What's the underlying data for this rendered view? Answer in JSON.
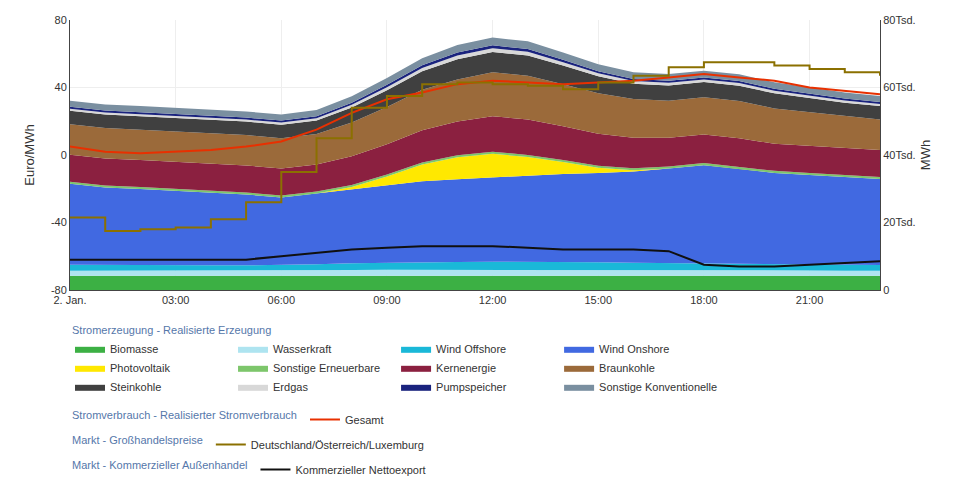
{
  "chart_data": {
    "type": "area",
    "stacked": true,
    "grid": true,
    "legend": "bottom",
    "ylabel": "Euro/MWh",
    "y2label": "MWh",
    "x": [
      0,
      1,
      2,
      3,
      4,
      5,
      6,
      7,
      8,
      9,
      10,
      11,
      12,
      13,
      14,
      15,
      16,
      17,
      18,
      19,
      20,
      21,
      22,
      23
    ],
    "xlim": [
      0,
      23
    ],
    "xticks": [
      {
        "value": 0,
        "label": "2. Jan."
      },
      {
        "value": 3,
        "label": "03:00"
      },
      {
        "value": 6,
        "label": "06:00"
      },
      {
        "value": 9,
        "label": "09:00"
      },
      {
        "value": 12,
        "label": "12:00"
      },
      {
        "value": 15,
        "label": "15:00"
      },
      {
        "value": 18,
        "label": "18:00"
      },
      {
        "value": 21,
        "label": "21:00"
      }
    ],
    "ylim": [
      -80,
      80
    ],
    "yticks": [
      -80,
      -40,
      0,
      40,
      80
    ],
    "y2lim": [
      0,
      80000
    ],
    "y2ticks": [
      0,
      {
        "value": 20000,
        "label": "20Tsd."
      },
      {
        "value": 40000,
        "label": "40Tsd."
      },
      {
        "value": 60000,
        "label": "60Tsd."
      },
      {
        "value": 80000,
        "label": "80Tsd."
      }
    ],
    "series": [
      {
        "name": "Biomasse",
        "section": "Stromerzeugung - Realisierte Erzeugung",
        "type": "area",
        "axis": "y2",
        "color": "#3cb044",
        "values": [
          4200,
          4200,
          4200,
          4200,
          4200,
          4200,
          4200,
          4200,
          4200,
          4200,
          4200,
          4200,
          4200,
          4200,
          4200,
          4200,
          4200,
          4200,
          4200,
          4200,
          4200,
          4200,
          4200,
          4200
        ]
      },
      {
        "name": "Wasserkraft",
        "section": "Stromerzeugung - Realisierte Erzeugung",
        "type": "area",
        "axis": "y2",
        "color": "#aee4f0",
        "values": [
          1500,
          1500,
          1500,
          1500,
          1500,
          1500,
          1500,
          1600,
          1700,
          1800,
          1800,
          1800,
          1800,
          1800,
          1800,
          1700,
          1700,
          1700,
          1800,
          1800,
          1700,
          1600,
          1500,
          1500
        ]
      },
      {
        "name": "Wind Offshore",
        "section": "Stromerzeugung - Realisierte Erzeugung",
        "type": "area",
        "axis": "y2",
        "color": "#1ab8d8",
        "values": [
          1800,
          1700,
          1700,
          1600,
          1600,
          1600,
          1700,
          1800,
          2000,
          2100,
          2200,
          2300,
          2400,
          2400,
          2400,
          2300,
          2200,
          2100,
          2000,
          1900,
          1800,
          1800,
          1700,
          1700
        ]
      },
      {
        "name": "Wind Onshore",
        "section": "Stromerzeugung - Realisierte Erzeugung",
        "type": "area",
        "axis": "y2",
        "color": "#4169e1",
        "values": [
          24000,
          23000,
          22500,
          22000,
          21500,
          21000,
          20000,
          21000,
          22000,
          23000,
          24000,
          24500,
          25000,
          25500,
          26000,
          26500,
          27000,
          28000,
          29000,
          28000,
          27000,
          26500,
          26000,
          25500
        ]
      },
      {
        "name": "Photovoltaik",
        "section": "Stromerzeugung - Realisierte Erzeugung",
        "type": "area",
        "axis": "y2",
        "color": "#ffe800",
        "values": [
          0,
          0,
          0,
          0,
          0,
          0,
          0,
          0,
          600,
          2500,
          5000,
          6500,
          7000,
          5500,
          3500,
          1500,
          400,
          0,
          0,
          0,
          0,
          0,
          0,
          0
        ]
      },
      {
        "name": "Sonstige Erneuerbare",
        "section": "Stromerzeugung - Realisierte Erzeugung",
        "type": "area",
        "axis": "y2",
        "color": "#7dc66b",
        "values": [
          600,
          600,
          600,
          600,
          600,
          600,
          600,
          600,
          600,
          600,
          600,
          600,
          600,
          600,
          600,
          600,
          600,
          600,
          600,
          600,
          600,
          600,
          600,
          600
        ]
      },
      {
        "name": "Kernenergie",
        "section": "Stromerzeugung - Realisierte Erzeugung",
        "type": "area",
        "axis": "y2",
        "color": "#8b2040",
        "values": [
          8000,
          8000,
          8000,
          8000,
          8000,
          8000,
          8000,
          8000,
          8500,
          9000,
          9500,
          10000,
          10500,
          10500,
          10000,
          9500,
          9000,
          8500,
          8500,
          8500,
          8000,
          8000,
          8000,
          8000
        ]
      },
      {
        "name": "Braunkohle",
        "section": "Stromerzeugung - Realisierte Erzeugung",
        "type": "area",
        "axis": "y2",
        "color": "#9b6a3a",
        "values": [
          9000,
          9000,
          9000,
          9000,
          9000,
          9000,
          9000,
          9000,
          10000,
          11000,
          12000,
          12500,
          13000,
          13000,
          12500,
          12000,
          11500,
          11000,
          11000,
          11000,
          10500,
          10000,
          9500,
          9000
        ]
      },
      {
        "name": "Steinkohle",
        "section": "Stromerzeugung - Realisierte Erzeugung",
        "type": "area",
        "axis": "y2",
        "color": "#404040",
        "values": [
          4000,
          4000,
          4000,
          4000,
          4000,
          4000,
          4000,
          4000,
          4500,
          5000,
          5500,
          6000,
          6000,
          6000,
          5500,
          5000,
          4500,
          4500,
          4500,
          4500,
          4500,
          4200,
          4000,
          4000
        ]
      },
      {
        "name": "Erdgas",
        "section": "Stromerzeugung - Realisierte Erzeugung",
        "type": "area",
        "axis": "y2",
        "color": "#d8d8d8",
        "values": [
          600,
          600,
          600,
          600,
          600,
          600,
          600,
          700,
          800,
          900,
          1000,
          1100,
          1100,
          1100,
          1000,
          900,
          800,
          800,
          800,
          800,
          750,
          700,
          650,
          600
        ]
      },
      {
        "name": "Pumpspeicher",
        "section": "Stromerzeugung - Realisierte Erzeugung",
        "type": "area",
        "axis": "y2",
        "color": "#1a237e",
        "values": [
          600,
          600,
          600,
          600,
          600,
          600,
          600,
          600,
          600,
          700,
          800,
          900,
          900,
          800,
          700,
          600,
          600,
          600,
          600,
          600,
          600,
          600,
          600,
          600
        ]
      },
      {
        "name": "Sonstige Konventionelle",
        "section": "Stromerzeugung - Realisierte Erzeugung",
        "type": "area",
        "axis": "y2",
        "color": "#7a8fa0",
        "values": [
          1800,
          1800,
          1800,
          1800,
          1800,
          1800,
          1800,
          1800,
          1900,
          2000,
          2100,
          2200,
          2300,
          2300,
          2200,
          2100,
          2000,
          2000,
          2000,
          2000,
          1900,
          1900,
          1800,
          1800
        ]
      },
      {
        "name": "Gesamt",
        "section": "Stromverbrauch - Realisierter Stromverbrauch",
        "type": "line",
        "color": "#e83000",
        "values": [
          5,
          2,
          1,
          2,
          3,
          5,
          8,
          15,
          25,
          33,
          37,
          42,
          44,
          43,
          42,
          43,
          44,
          46,
          48,
          46,
          44,
          40,
          38,
          36
        ]
      },
      {
        "name": "Deutschland/Österreich/Luxemburg",
        "section": "Markt - Großhandelspreise",
        "type": "step",
        "color": "#8b7000",
        "values": [
          -37,
          -45,
          -44,
          -43,
          -38,
          -28,
          -10,
          10,
          28,
          35,
          42,
          43,
          42,
          41,
          39,
          43,
          47,
          52,
          55,
          55,
          53,
          51,
          49,
          47
        ]
      },
      {
        "name": "Kommerzieller Nettoexport",
        "section": "Markt - Kommerzieller Außenhandel",
        "type": "line",
        "color": "#101010",
        "values": [
          -62,
          -62,
          -62,
          -62,
          -62,
          -62,
          -60,
          -58,
          -56,
          -55,
          -54,
          -54,
          -54,
          -55,
          -56,
          -56,
          -56,
          -57,
          -65,
          -66,
          -66,
          -65,
          -64,
          -63
        ]
      }
    ]
  }
}
